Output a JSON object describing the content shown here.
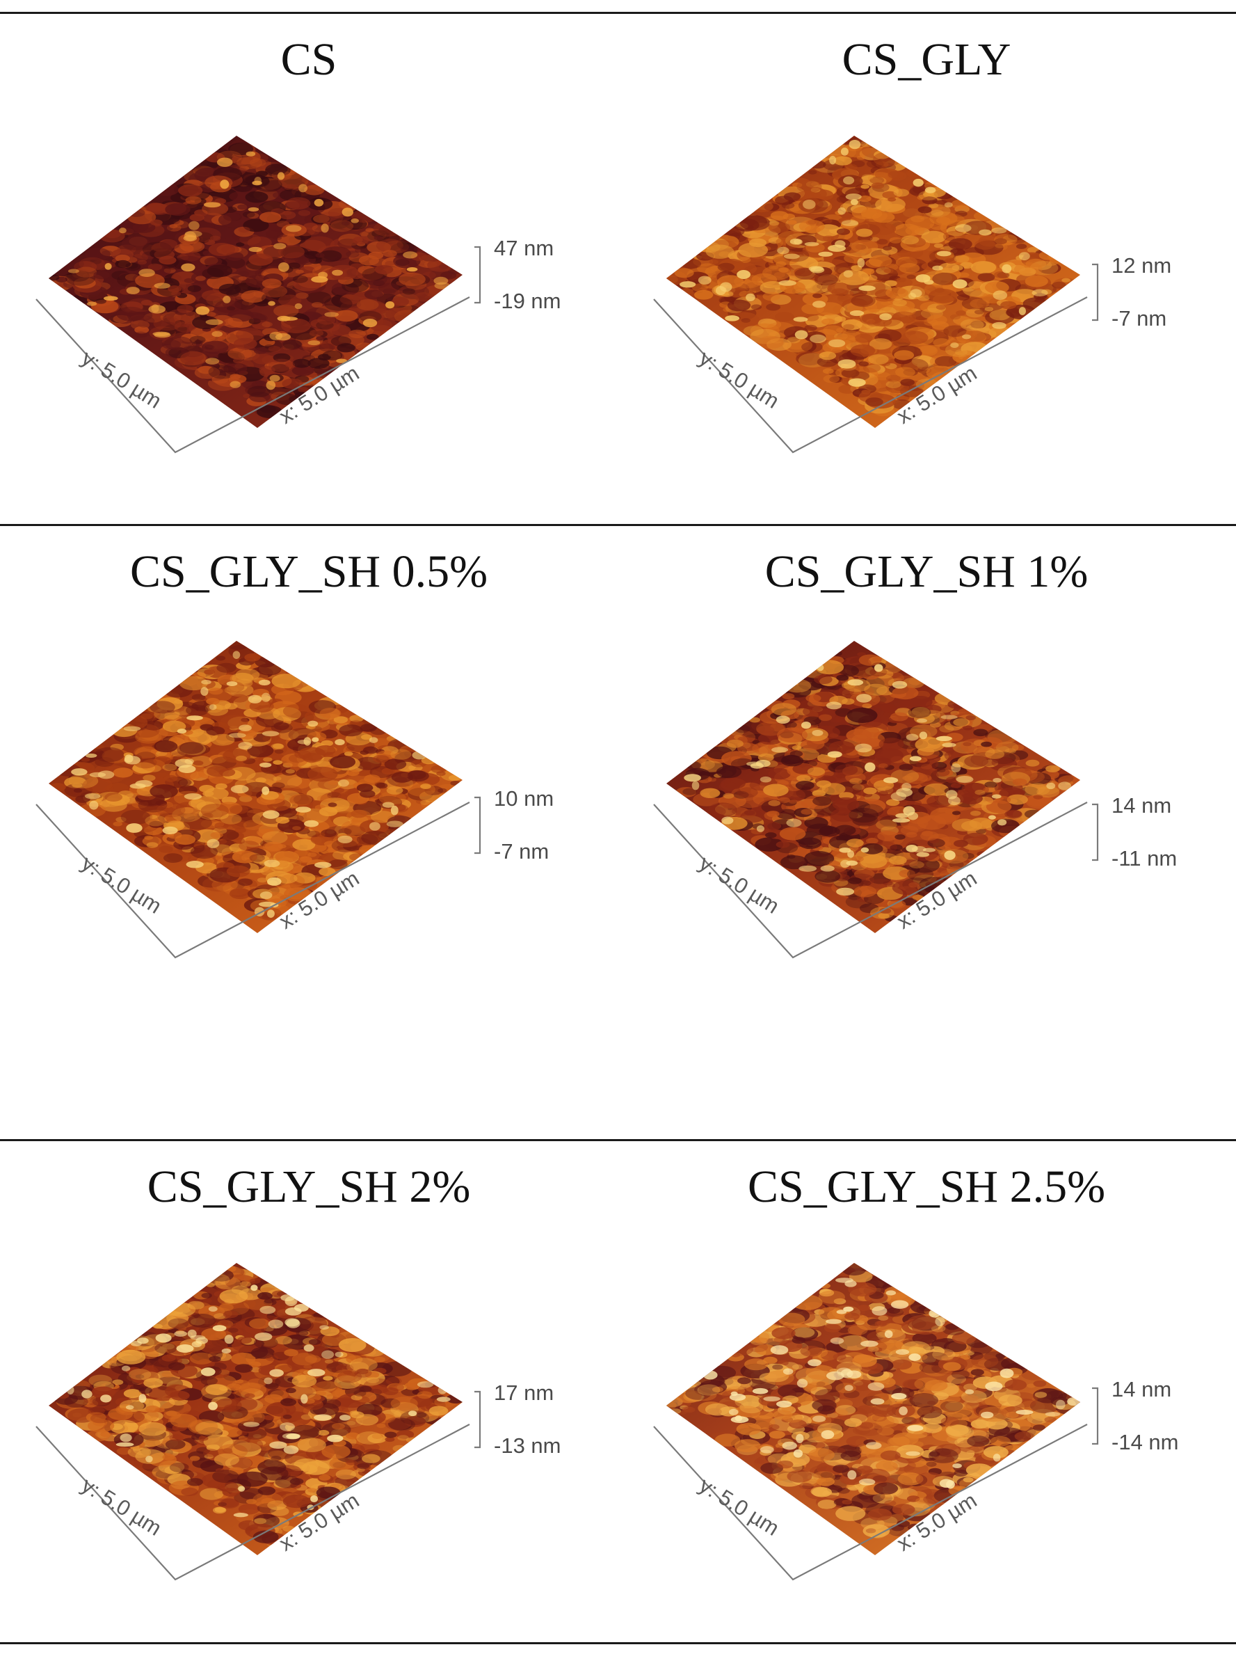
{
  "panels": [
    {
      "title": "CS",
      "z_max": "47 nm",
      "z_min": "-19 nm",
      "x_axis": "x: 5.0 µm",
      "y_axis": "y: 5.0 µm",
      "palette": [
        "#3a0c10",
        "#5e1616",
        "#8c2a16",
        "#b84718"
      ],
      "highlight": "#f0a640"
    },
    {
      "title": "CS_GLY",
      "z_max": "12 nm",
      "z_min": "-7 nm",
      "x_axis": "x: 5.0 µm",
      "y_axis": "y: 5.0 µm",
      "palette": [
        "#7a1f10",
        "#b04614",
        "#d9711c",
        "#e99a32"
      ],
      "highlight": "#f7d070"
    },
    {
      "title": "CS_GLY_SH 0.5%",
      "z_max": "10 nm",
      "z_min": "-7 nm",
      "x_axis": "x: 5.0 µm",
      "y_axis": "y: 5.0 µm",
      "palette": [
        "#6e1a10",
        "#a63c12",
        "#d2661a",
        "#e8952e"
      ],
      "highlight": "#f8d27a"
    },
    {
      "title": "CS_GLY_SH 1%",
      "z_max": "14 nm",
      "z_min": "-11 nm",
      "x_axis": "x: 5.0 µm",
      "y_axis": "y: 5.0 µm",
      "palette": [
        "#4a1012",
        "#8a2814",
        "#c4551a",
        "#e28e2c"
      ],
      "highlight": "#f8d884"
    },
    {
      "title": "CS_GLY_SH 2%",
      "z_max": "17 nm",
      "z_min": "-13 nm",
      "x_axis": "x: 5.0 µm",
      "y_axis": "y: 5.0 µm",
      "palette": [
        "#5a1414",
        "#9a3214",
        "#d0661c",
        "#eda23a"
      ],
      "highlight": "#fbe29a"
    },
    {
      "title": "CS_GLY_SH 2.5%",
      "z_max": "14 nm",
      "z_min": "-14 nm",
      "x_axis": "x: 5.0 µm",
      "y_axis": "y: 5.0 µm",
      "palette": [
        "#5e1616",
        "#a8401a",
        "#dc7a26",
        "#f0ad48"
      ],
      "highlight": "#fce6a8"
    }
  ]
}
